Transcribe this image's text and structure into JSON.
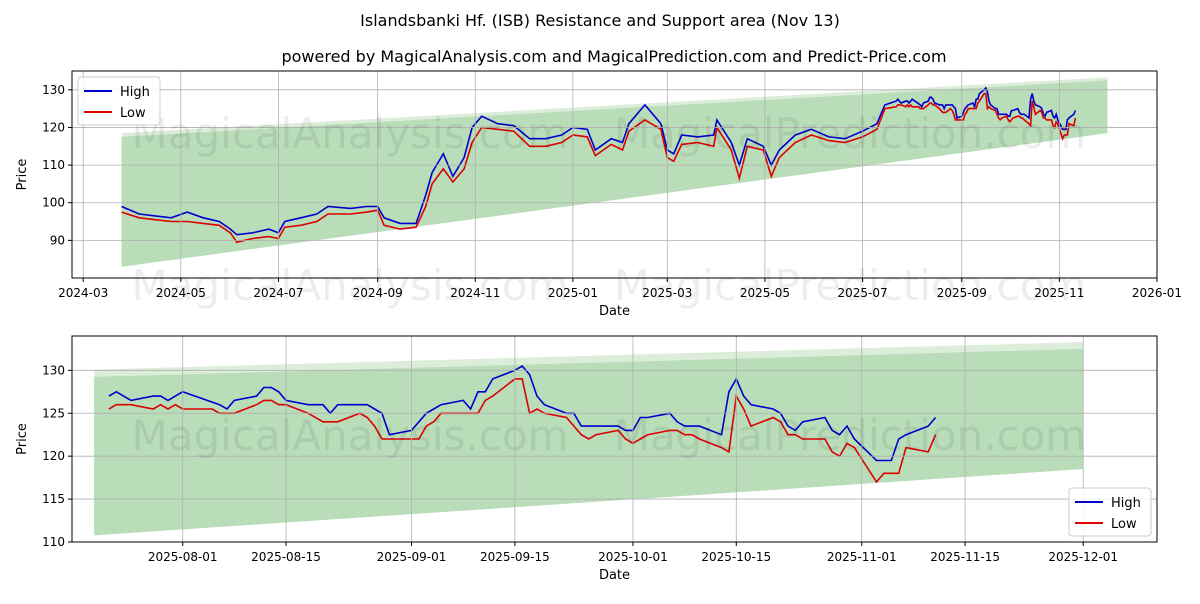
{
  "title": "Islandsbanki Hf. (ISB) Resistance and Support area (Nov 13)",
  "subtitle": "powered by MagicalAnalysis.com and MagicalPrediction.com and Predict-Price.com",
  "watermarks": [
    "MagicalAnalysis.com",
    "MagicalPrediction.com"
  ],
  "colors": {
    "high": "#0000cc",
    "low": "#dd0000",
    "band": "#b9dcb9",
    "band_light": "#dcedd9"
  },
  "chart_data": [
    {
      "type": "line",
      "id": "full",
      "xlabel": "Date",
      "ylabel": "Price",
      "xlim": [
        "2024-02-23",
        "2026-01-01"
      ],
      "ylim": [
        80,
        135
      ],
      "xticks": [
        "2024-03",
        "2024-05",
        "2024-07",
        "2024-09",
        "2024-11",
        "2025-01",
        "2025-03",
        "2025-05",
        "2025-07",
        "2025-09",
        "2025-11",
        "2026-01"
      ],
      "yticks": [
        90,
        100,
        110,
        120,
        130
      ],
      "legend": {
        "placement": "top-left",
        "entries": [
          "High",
          "Low"
        ]
      },
      "grid": true,
      "from": "2024-01-01"
    },
    {
      "type": "line",
      "id": "zoom",
      "xlabel": "Date",
      "ylabel": "Price",
      "xlim": [
        "2025-07-17",
        "2025-12-11"
      ],
      "ylim": [
        110,
        134
      ],
      "xticks": [
        "2025-08-01",
        "2025-08-15",
        "2025-09-01",
        "2025-09-15",
        "2025-10-01",
        "2025-10-15",
        "2025-11-01",
        "2025-11-15",
        "2025-12-01"
      ],
      "yticks": [
        110,
        115,
        120,
        125,
        130
      ],
      "legend": {
        "placement": "bottom-right",
        "entries": [
          "High",
          "Low"
        ]
      },
      "grid": true,
      "from": "2025-07-20"
    }
  ],
  "band": {
    "start": "2024-03-25",
    "end": "2025-12-01",
    "lower": [
      83,
      118.5
    ],
    "upper": [
      117.5,
      132.5
    ],
    "outer_upper": [
      118.5,
      133.3
    ]
  },
  "series": {
    "dates": [
      "2024-03-25",
      "2024-04-05",
      "2024-04-15",
      "2024-04-25",
      "2024-05-05",
      "2024-05-15",
      "2024-05-25",
      "2024-06-01",
      "2024-06-05",
      "2024-06-15",
      "2024-06-25",
      "2024-07-01",
      "2024-07-05",
      "2024-07-15",
      "2024-07-25",
      "2024-08-01",
      "2024-08-15",
      "2024-08-25",
      "2024-09-01",
      "2024-09-05",
      "2024-09-15",
      "2024-09-25",
      "2024-10-01",
      "2024-10-05",
      "2024-10-12",
      "2024-10-18",
      "2024-10-25",
      "2024-10-30",
      "2024-11-05",
      "2024-11-15",
      "2024-11-25",
      "2024-12-05",
      "2024-12-15",
      "2024-12-25",
      "2025-01-01",
      "2025-01-10",
      "2025-01-15",
      "2025-01-25",
      "2025-02-01",
      "2025-02-05",
      "2025-02-15",
      "2025-02-25",
      "2025-03-01",
      "2025-03-05",
      "2025-03-10",
      "2025-03-20",
      "2025-03-30",
      "2025-04-01",
      "2025-04-10",
      "2025-04-15",
      "2025-04-20",
      "2025-04-30",
      "2025-05-05",
      "2025-05-10",
      "2025-05-20",
      "2025-05-30",
      "2025-06-10",
      "2025-06-20",
      "2025-07-01",
      "2025-07-10",
      "2025-07-15",
      "2025-07-22",
      "2025-07-23",
      "2025-07-25",
      "2025-07-28",
      "2025-07-29",
      "2025-07-30",
      "2025-07-31",
      "2025-08-01",
      "2025-08-05",
      "2025-08-06",
      "2025-08-07",
      "2025-08-08",
      "2025-08-11",
      "2025-08-12",
      "2025-08-13",
      "2025-08-14",
      "2025-08-15",
      "2025-08-18",
      "2025-08-20",
      "2025-08-21",
      "2025-08-22",
      "2025-08-25",
      "2025-08-26",
      "2025-08-27",
      "2025-08-28",
      "2025-08-29",
      "2025-09-01",
      "2025-09-02",
      "2025-09-03",
      "2025-09-04",
      "2025-09-05",
      "2025-09-08",
      "2025-09-09",
      "2025-09-10",
      "2025-09-11",
      "2025-09-12",
      "2025-09-15",
      "2025-09-16",
      "2025-09-17",
      "2025-09-18",
      "2025-09-19",
      "2025-09-22",
      "2025-09-23",
      "2025-09-24",
      "2025-09-25",
      "2025-09-26",
      "2025-09-29",
      "2025-09-30",
      "2025-10-01",
      "2025-10-02",
      "2025-10-03",
      "2025-10-06",
      "2025-10-07",
      "2025-10-08",
      "2025-10-09",
      "2025-10-10",
      "2025-10-13",
      "2025-10-14",
      "2025-10-15",
      "2025-10-16",
      "2025-10-17",
      "2025-10-20",
      "2025-10-21",
      "2025-10-22",
      "2025-10-23",
      "2025-10-24",
      "2025-10-27",
      "2025-10-28",
      "2025-10-29",
      "2025-10-30",
      "2025-10-31",
      "2025-11-03",
      "2025-11-04",
      "2025-11-05",
      "2025-11-06",
      "2025-11-07",
      "2025-11-10",
      "2025-11-11"
    ],
    "high": [
      99,
      97,
      96.5,
      96,
      97.5,
      96,
      95,
      93,
      91.5,
      92,
      93,
      92,
      95,
      96,
      97,
      99,
      98.5,
      99,
      99,
      96,
      94.5,
      94.5,
      102,
      108,
      113,
      107,
      112,
      120,
      123,
      121,
      120.5,
      117,
      117,
      118,
      120,
      119.5,
      114,
      117,
      116,
      121,
      126,
      121,
      114,
      113,
      118,
      117.5,
      118,
      122,
      116,
      110,
      117,
      115,
      110,
      114,
      118,
      119.5,
      117.5,
      117,
      119,
      121,
      126,
      127,
      127.5,
      126.5,
      127,
      127,
      126.5,
      127,
      127.5,
      126.3,
      126,
      125.5,
      126.5,
      127,
      128,
      128,
      127.5,
      126.5,
      126,
      126,
      125,
      126,
      126,
      126,
      125.5,
      125,
      122.5,
      123,
      124,
      125,
      125.5,
      126,
      126.5,
      125.5,
      127.5,
      127.5,
      129,
      130,
      130.5,
      129.5,
      127,
      126,
      125,
      125,
      123.5,
      123.5,
      123.5,
      123.5,
      123,
      123,
      124.5,
      124.5,
      125,
      124,
      123.5,
      123.5,
      123.5,
      122.5,
      127.5,
      129,
      127,
      126,
      125.5,
      125,
      123.5,
      123,
      124,
      124.5,
      123,
      122.5,
      123.5,
      122,
      119.5,
      119.5,
      119.5,
      122,
      122.5,
      123.5,
      124.5
    ],
    "low": [
      97.5,
      96,
      95.5,
      95,
      95,
      94.5,
      94,
      92,
      89.5,
      90.5,
      91,
      90.5,
      93.5,
      94,
      95,
      97,
      97,
      97.5,
      98,
      94,
      93,
      93.5,
      99,
      105,
      109,
      105.5,
      109,
      116,
      120,
      119.5,
      119,
      115,
      115,
      116,
      118,
      117.5,
      112.5,
      115.5,
      114,
      119,
      122,
      119.5,
      112,
      111,
      115.5,
      116,
      115,
      120,
      114,
      106.5,
      115,
      114,
      107,
      112,
      116,
      118,
      116.5,
      116,
      117.5,
      119.5,
      125,
      125.5,
      126,
      126,
      125.5,
      126,
      125.5,
      126,
      125.5,
      125.5,
      125,
      125,
      125,
      126,
      126.5,
      126.5,
      126,
      126,
      125,
      124,
      124,
      124,
      125,
      124.5,
      123.5,
      122,
      122,
      122,
      122,
      123.5,
      124,
      125,
      125,
      125,
      125,
      126.5,
      127,
      129,
      129,
      125,
      125.5,
      125,
      124.5,
      123.5,
      122.5,
      122,
      122.5,
      123,
      122,
      121.5,
      122,
      122.5,
      123,
      123,
      122.5,
      122.5,
      122,
      121,
      120.5,
      127,
      125.5,
      123.5,
      124.5,
      124,
      122.5,
      122.5,
      122,
      122,
      120.5,
      120,
      121.5,
      121,
      117,
      118,
      118,
      118,
      121,
      120.5,
      122.5
    ]
  }
}
